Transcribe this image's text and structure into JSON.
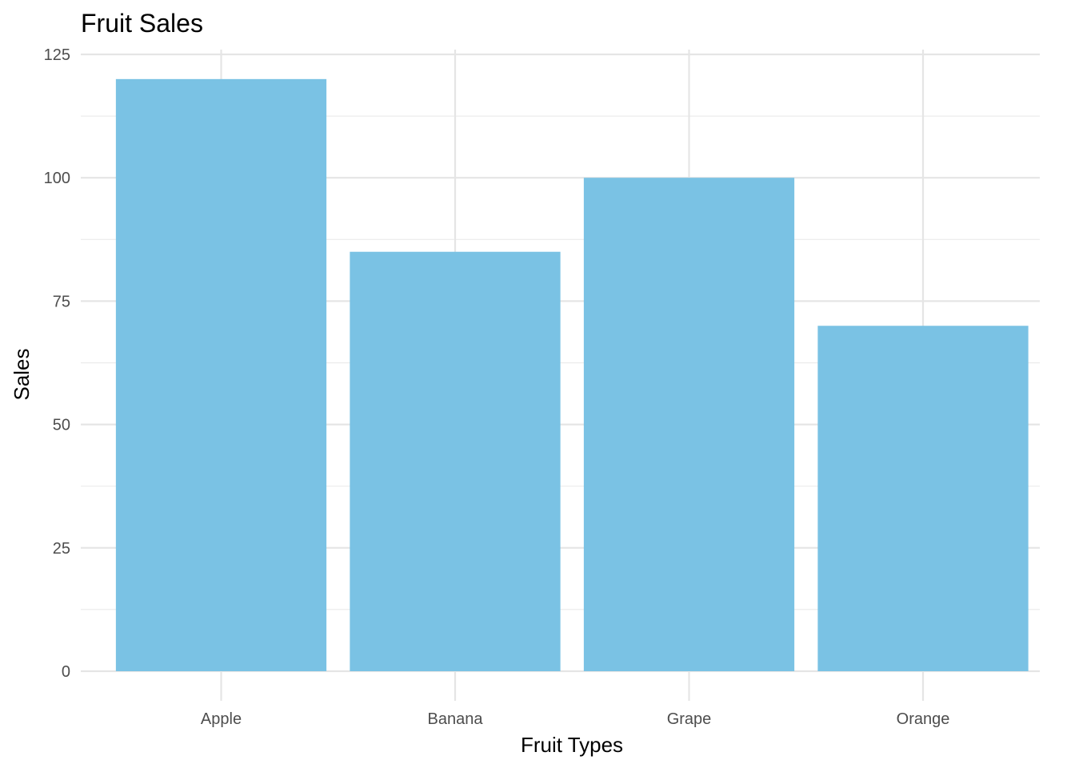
{
  "chart_data": {
    "type": "bar",
    "title": "Fruit Sales",
    "xlabel": "Fruit Types",
    "ylabel": "Sales",
    "categories": [
      "Apple",
      "Banana",
      "Grape",
      "Orange"
    ],
    "values": [
      120,
      85,
      100,
      70
    ],
    "ylim": [
      0,
      125
    ],
    "yticks": [
      0,
      25,
      50,
      75,
      100,
      125
    ],
    "grid": true,
    "legend": "none",
    "bar_color": "#7AC2E4"
  }
}
